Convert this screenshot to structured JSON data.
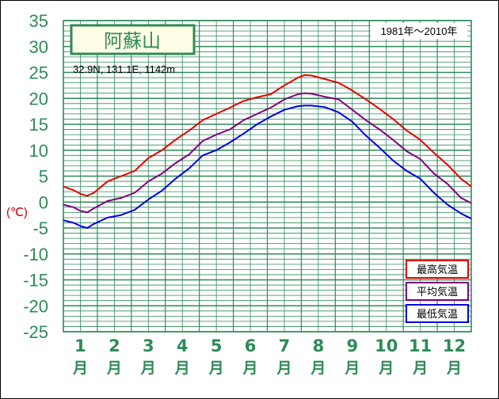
{
  "chart_data": {
    "type": "line",
    "title": "阿蘇山",
    "location": "32.9N,  131.1E,  1142m",
    "period": "1981年〜2010年",
    "ylabel": "(℃)",
    "ylim": [
      -25,
      35
    ],
    "y_ticks": [
      "35",
      "30",
      "25",
      "20",
      "15",
      "10",
      "5",
      "0",
      "-5",
      "-10",
      "-15",
      "-20",
      "-25"
    ],
    "y_tick_values": [
      35,
      30,
      25,
      20,
      15,
      10,
      5,
      0,
      -5,
      -10,
      -15,
      -20,
      -25
    ],
    "months": [
      "1",
      "2",
      "3",
      "4",
      "5",
      "6",
      "7",
      "8",
      "9",
      "10",
      "11",
      "12"
    ],
    "month_unit": "月",
    "xlim": [
      0.5,
      12.5
    ],
    "grid": true,
    "legend_position": "bottom-right",
    "series": [
      {
        "name": "最高気温",
        "color": "#e60000",
        "x": [
          0.5,
          0.8,
          1.0,
          1.2,
          1.4,
          1.8,
          2.2,
          2.6,
          3.0,
          3.4,
          3.8,
          4.2,
          4.6,
          5.0,
          5.4,
          5.8,
          6.2,
          6.6,
          7.0,
          7.4,
          7.6,
          7.8,
          8.2,
          8.6,
          9.0,
          9.4,
          9.8,
          10.2,
          10.6,
          11.0,
          11.4,
          11.8,
          12.2,
          12.5
        ],
        "y": [
          3.0,
          2.3,
          1.6,
          1.2,
          1.8,
          4.0,
          5.0,
          6.0,
          8.5,
          10.0,
          12.0,
          13.8,
          15.8,
          17.0,
          18.2,
          19.5,
          20.2,
          20.8,
          22.5,
          24.0,
          24.5,
          24.4,
          23.7,
          23.0,
          21.5,
          19.8,
          18.0,
          16.0,
          13.8,
          12.0,
          9.5,
          7.2,
          4.5,
          3.0
        ]
      },
      {
        "name": "平均気温",
        "color": "#800080",
        "x": [
          0.5,
          0.8,
          1.0,
          1.2,
          1.4,
          1.8,
          2.2,
          2.6,
          3.0,
          3.4,
          3.8,
          4.2,
          4.6,
          5.0,
          5.4,
          5.8,
          6.2,
          6.6,
          7.0,
          7.4,
          7.6,
          7.8,
          8.2,
          8.6,
          9.0,
          9.4,
          9.8,
          10.2,
          10.6,
          11.0,
          11.4,
          11.8,
          12.2,
          12.5
        ],
        "y": [
          -0.5,
          -1.0,
          -1.7,
          -2.0,
          -1.2,
          0.2,
          0.8,
          1.8,
          4.0,
          5.5,
          7.5,
          9.2,
          11.8,
          13.0,
          14.0,
          15.8,
          17.0,
          18.2,
          19.8,
          20.8,
          21.0,
          20.9,
          20.3,
          19.8,
          17.8,
          15.8,
          14.0,
          12.0,
          9.8,
          8.3,
          5.5,
          3.5,
          0.8,
          -0.2
        ]
      },
      {
        "name": "最低気温",
        "color": "#0000e6",
        "x": [
          0.5,
          0.8,
          1.0,
          1.2,
          1.4,
          1.8,
          2.2,
          2.6,
          3.0,
          3.4,
          3.8,
          4.2,
          4.6,
          5.0,
          5.4,
          5.8,
          6.2,
          6.6,
          7.0,
          7.4,
          7.6,
          7.8,
          8.2,
          8.6,
          9.0,
          9.4,
          9.8,
          10.2,
          10.6,
          11.0,
          11.4,
          11.8,
          12.2,
          12.5
        ],
        "y": [
          -3.5,
          -4.0,
          -4.6,
          -5.0,
          -4.2,
          -3.0,
          -2.5,
          -1.5,
          0.5,
          2.2,
          4.5,
          6.5,
          9.0,
          10.0,
          11.5,
          13.2,
          15.0,
          16.5,
          17.8,
          18.5,
          18.6,
          18.6,
          18.3,
          17.3,
          15.5,
          12.8,
          10.5,
          8.0,
          6.0,
          4.5,
          1.8,
          -0.5,
          -2.2,
          -3.2
        ]
      }
    ]
  }
}
